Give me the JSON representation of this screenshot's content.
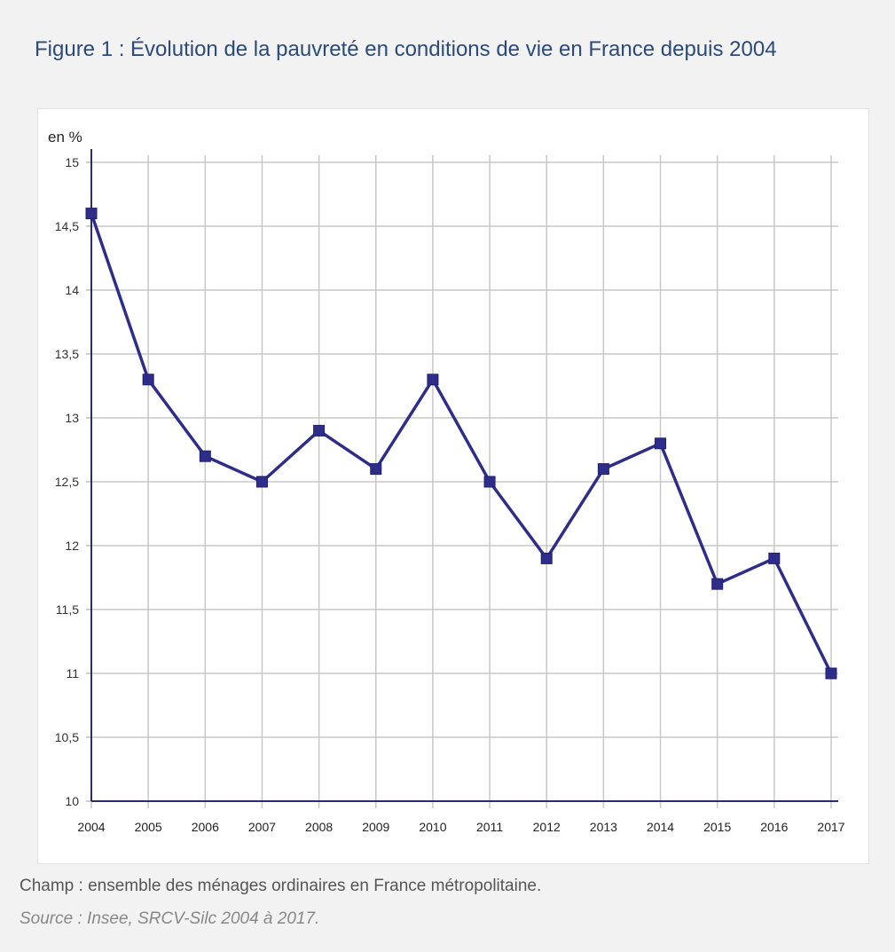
{
  "title": "Figure 1 : Évolution de la pauvreté en conditions de vie en France depuis 2004",
  "note": "Champ : ensemble des ménages ordinaires en France métropolitaine.",
  "source": "Source : Insee, SRCV-Silc 2004 à 2017.",
  "chart_data": {
    "type": "line",
    "title": "",
    "ylabel": "en %",
    "xlabel": "",
    "x": [
      "2004",
      "2005",
      "2006",
      "2007",
      "2008",
      "2009",
      "2010",
      "2011",
      "2012",
      "2013",
      "2014",
      "2015",
      "2016",
      "2017"
    ],
    "series": [
      {
        "values": [
          14.6,
          13.3,
          12.7,
          12.5,
          12.9,
          12.6,
          13.3,
          12.5,
          11.9,
          12.6,
          12.8,
          11.7,
          11.9,
          11.0
        ],
        "color": "#2e2e8a"
      }
    ],
    "ylim": [
      10,
      15
    ],
    "yticks": [
      10,
      10.5,
      11,
      11.5,
      12,
      12.5,
      13,
      13.5,
      14,
      14.5,
      15
    ],
    "ytick_labels": [
      "10",
      "10,5",
      "11",
      "11,5",
      "12",
      "12,5",
      "13",
      "13,5",
      "14",
      "14,5",
      "15"
    ],
    "grid": true,
    "marker": "square"
  }
}
